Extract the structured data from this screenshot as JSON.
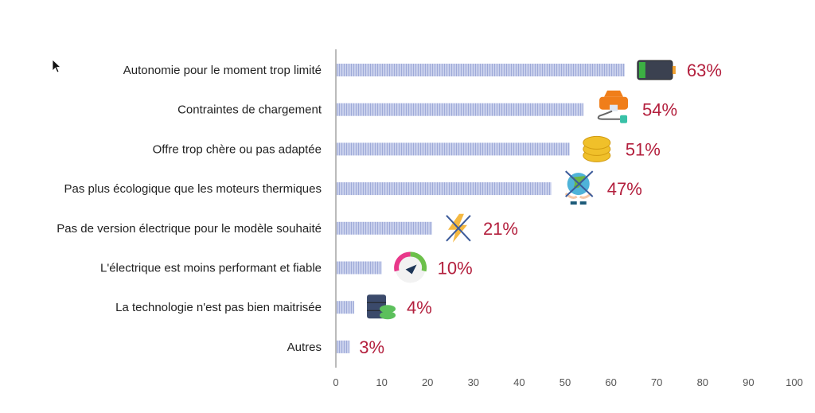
{
  "chart_data": {
    "type": "bar",
    "orientation": "horizontal",
    "title": "",
    "xlabel": "",
    "ylabel": "",
    "xlim": [
      0,
      100
    ],
    "xticks": [
      0,
      10,
      20,
      30,
      40,
      50,
      60,
      70,
      80,
      90,
      100
    ],
    "categories": [
      "Autonomie pour le moment trop limité",
      "Contraintes de chargement",
      "Offre trop chère ou pas adaptée",
      "Pas plus écologique que les moteurs thermiques",
      "Pas de version électrique pour le modèle souhaité",
      "L'électrique est moins performant et fiable",
      "La technologie n'est pas bien maitrisée",
      "Autres"
    ],
    "values": [
      63,
      54,
      51,
      47,
      21,
      10,
      4,
      3
    ],
    "value_labels": [
      "63%",
      "54%",
      "51%",
      "47%",
      "21%",
      "10%",
      "4%",
      "3%"
    ],
    "icons": [
      "battery-icon",
      "car-charging-icon",
      "coins-icon",
      "crossed-globe-icon",
      "crossed-lightning-icon",
      "gauge-icon",
      "database-icon",
      ""
    ],
    "colors": {
      "bar": "#c9d0ec",
      "bar_stripe": "#9eaad8",
      "label": "#b31f3d",
      "axis": "#bbbbbb"
    },
    "grid": false,
    "legend": "none"
  }
}
